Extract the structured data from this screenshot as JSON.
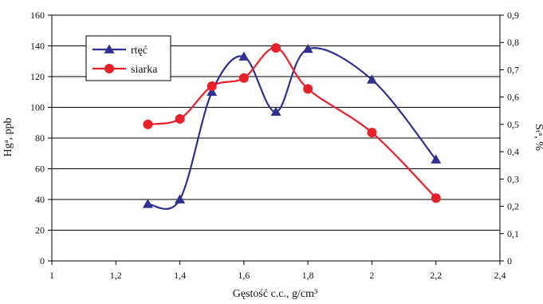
{
  "chart_data": {
    "type": "line",
    "xlabel": "Gęstość c.c., g/cm³",
    "ylabel": "Hgᵃ, ppb",
    "y2label": "Sₜᵃ, %",
    "xlim": [
      1,
      2.4
    ],
    "ylim": [
      0,
      160
    ],
    "y2lim": [
      0,
      0.9
    ],
    "x_ticks": [
      "1",
      "1,2",
      "1,4",
      "1,6",
      "1,8",
      "2",
      "2,2",
      "2,4"
    ],
    "y_ticks": [
      "0",
      "20",
      "40",
      "60",
      "80",
      "100",
      "120",
      "140",
      "160"
    ],
    "y2_ticks": [
      "0",
      "0,1",
      "0,2",
      "0,3",
      "0,4",
      "0,5",
      "0,6",
      "0,7",
      "0,8",
      "0,9"
    ],
    "grid": true,
    "legend_position": "top-left",
    "series": [
      {
        "name": "rtęć",
        "axis": "left",
        "color": "#2e3192",
        "marker": "triangle",
        "x": [
          1.3,
          1.4,
          1.5,
          1.6,
          1.7,
          1.8,
          2.0,
          2.2
        ],
        "y": [
          37,
          40,
          110,
          133,
          97,
          138,
          118,
          66
        ]
      },
      {
        "name": "siarka",
        "axis": "right",
        "color": "#e8202a",
        "marker": "circle",
        "x": [
          1.3,
          1.4,
          1.5,
          1.6,
          1.7,
          1.8,
          2.0,
          2.2
        ],
        "y": [
          0.5,
          0.52,
          0.64,
          0.67,
          0.78,
          0.63,
          0.47,
          0.23
        ]
      }
    ]
  }
}
